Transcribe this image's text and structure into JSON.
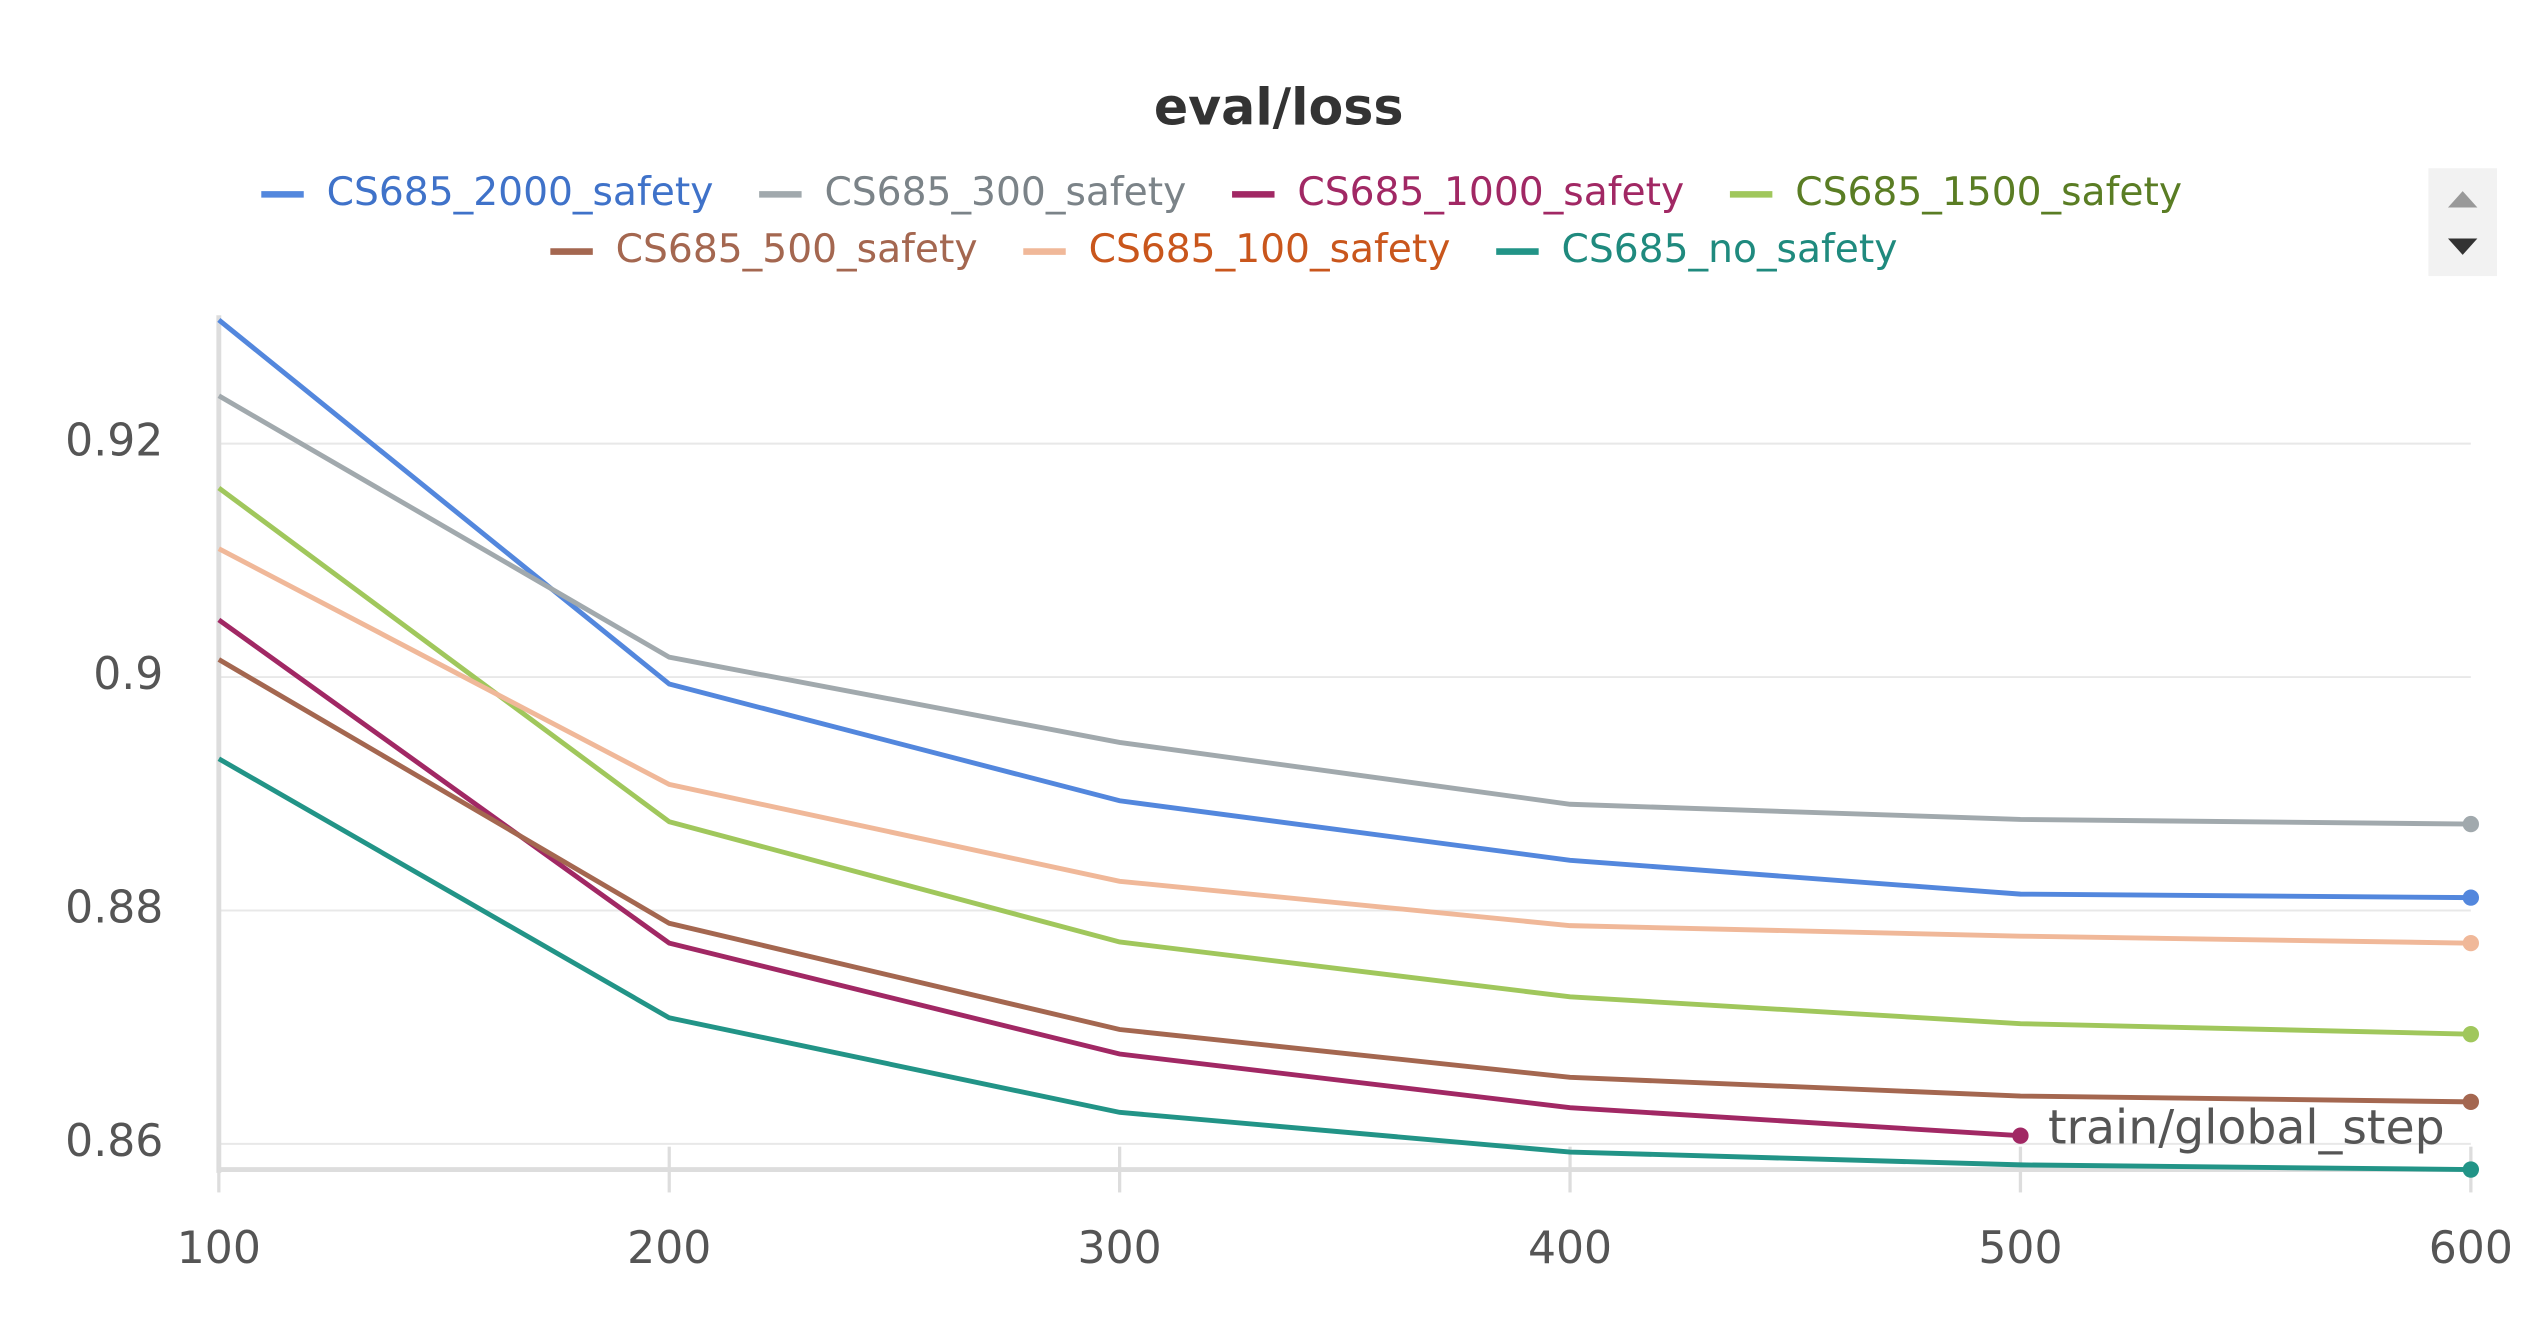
{
  "chart_data": {
    "type": "line",
    "title": "eval/loss",
    "x_label": "train/global_step",
    "x": [
      100,
      200,
      300,
      400,
      500,
      600
    ],
    "xlim": [
      100,
      600
    ],
    "xticks": [
      100,
      200,
      300,
      400,
      500,
      600
    ],
    "ylim": [
      0.8578,
      0.931
    ],
    "yticks": [
      0.86,
      0.88,
      0.9,
      0.92
    ],
    "grid": true,
    "series": [
      {
        "name": "CS685_2000_safety",
        "color": "#5387dd",
        "text_color": "#3f72c9",
        "values": [
          0.9306,
          0.8994,
          0.8894,
          0.8843,
          0.8814,
          0.8811
        ]
      },
      {
        "name": "CS685_300_safety",
        "color": "#a1a9ad",
        "text_color": "#7b8388",
        "values": [
          0.9241,
          0.9017,
          0.8944,
          0.8891,
          0.8878,
          0.8874
        ]
      },
      {
        "name": "CS685_1000_safety",
        "color": "#a12864",
        "text_color": "#a12864",
        "values": [
          0.9049,
          0.8772,
          0.8677,
          0.8631,
          0.8607,
          null
        ]
      },
      {
        "name": "CS685_1500_safety",
        "color": "#a0c75c",
        "text_color": "#5a7d24",
        "values": [
          0.9162,
          0.8876,
          0.8773,
          0.8726,
          0.8703,
          0.8694
        ]
      },
      {
        "name": "CS685_500_safety",
        "color": "#a46750",
        "text_color": "#a46750",
        "values": [
          0.9015,
          0.8789,
          0.8698,
          0.8657,
          0.8641,
          0.8636
        ]
      },
      {
        "name": "CS685_100_safety",
        "color": "#f0b899",
        "text_color": "#c9561c",
        "values": [
          0.911,
          0.8908,
          0.8825,
          0.8787,
          0.8778,
          0.8772
        ]
      },
      {
        "name": "CS685_no_safety",
        "color": "#229487",
        "text_color": "#1f8a7e",
        "values": [
          0.893,
          0.8708,
          0.8627,
          0.8593,
          0.8582,
          0.8578
        ]
      }
    ]
  }
}
